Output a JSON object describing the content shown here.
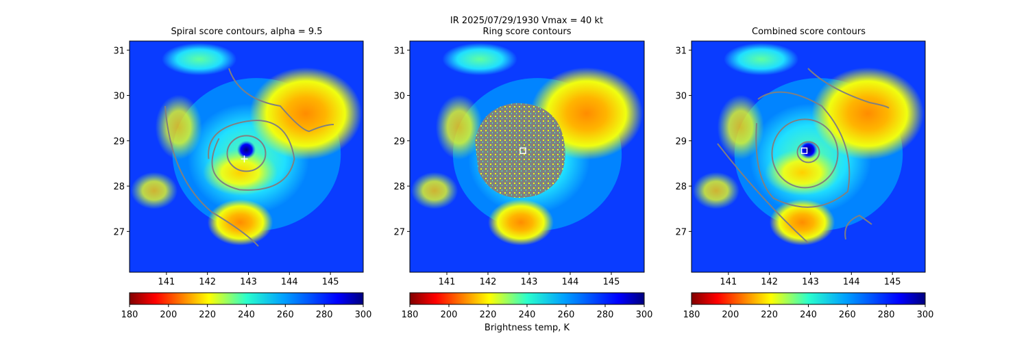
{
  "figure": {
    "suptitle_line1": "IR  2025/07/29/1930    Vmax = 40 kt",
    "colorbar_label": "Brightness temp, K",
    "colormap": "jet_r"
  },
  "chart_data": [
    {
      "type": "heatmap",
      "title": "Spiral score contours, alpha =  9.5",
      "x_ticks": [
        141,
        142,
        143,
        144,
        145
      ],
      "y_ticks": [
        27,
        28,
        29,
        30,
        31
      ],
      "xlim": [
        140.1,
        145.8
      ],
      "ylim": [
        26.1,
        31.2
      ],
      "colorbar": {
        "range": [
          180,
          300
        ],
        "ticks": [
          180,
          200,
          220,
          240,
          260,
          280,
          300
        ]
      },
      "center_marker": {
        "symbol": "+",
        "lon": 142.9,
        "lat": 28.6
      },
      "contour_color": "#808080"
    },
    {
      "type": "heatmap",
      "title": "Ring score contours",
      "x_ticks": [
        141,
        142,
        143,
        144,
        145
      ],
      "y_ticks": [
        27,
        28,
        29,
        30,
        31
      ],
      "xlim": [
        140.1,
        145.8
      ],
      "ylim": [
        26.1,
        31.2
      ],
      "colorbar": {
        "range": [
          180,
          300
        ],
        "ticks": [
          180,
          200,
          220,
          240,
          260,
          280,
          300
        ]
      },
      "center_marker": {
        "symbol": "square",
        "lon": 142.85,
        "lat": 28.78
      },
      "mask_color": "#808080"
    },
    {
      "type": "heatmap",
      "title": "Combined score contours",
      "x_ticks": [
        141,
        142,
        143,
        144,
        145
      ],
      "y_ticks": [
        27,
        28,
        29,
        30,
        31
      ],
      "xlim": [
        140.1,
        145.8
      ],
      "ylim": [
        26.1,
        31.2
      ],
      "colorbar": {
        "range": [
          180,
          300
        ],
        "ticks": [
          180,
          200,
          220,
          240,
          260,
          280,
          300
        ]
      },
      "center_marker": {
        "symbol": "square",
        "lon": 142.85,
        "lat": 28.78
      },
      "contour_color": "#808080"
    }
  ]
}
